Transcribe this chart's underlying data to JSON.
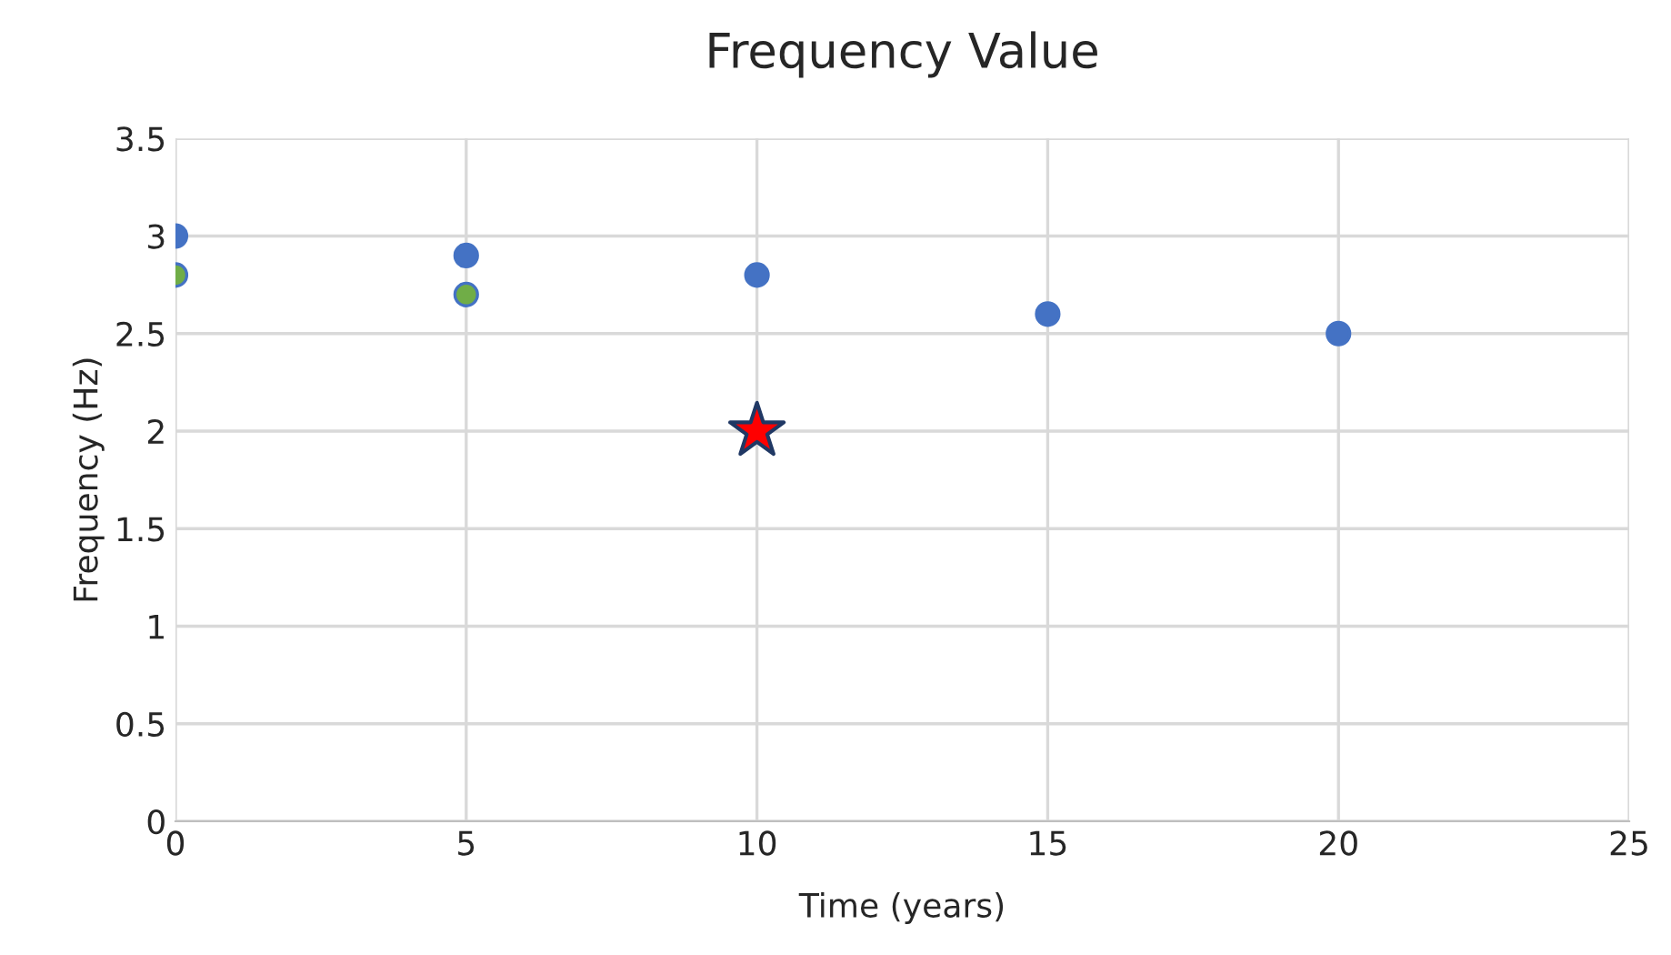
{
  "chart_data": {
    "type": "scatter",
    "title": "Frequency Value",
    "xlabel": "Time (years)",
    "ylabel": "Frequency (Hz)",
    "series": [
      {
        "color": "#4472c4",
        "marker": "circle",
        "x": [
          0,
          5,
          10,
          15,
          20
        ],
        "values": [
          3.0,
          2.9,
          2.8,
          2.6,
          2.5
        ]
      },
      {
        "color": "#70ad47",
        "marker": "circle",
        "x": [
          0,
          5
        ],
        "values": [
          2.8,
          2.7
        ]
      },
      {
        "color": "#ff0000",
        "marker": "star",
        "x": [
          10
        ],
        "values": [
          2.0
        ]
      }
    ],
    "xlim": [
      0,
      25
    ],
    "xticks": [
      0,
      5,
      10,
      15,
      20,
      25
    ],
    "ylim": [
      0,
      3.5
    ],
    "yticks": [
      0,
      0.5,
      1,
      1.5,
      2,
      2.5,
      3,
      3.5
    ],
    "grid": true
  }
}
